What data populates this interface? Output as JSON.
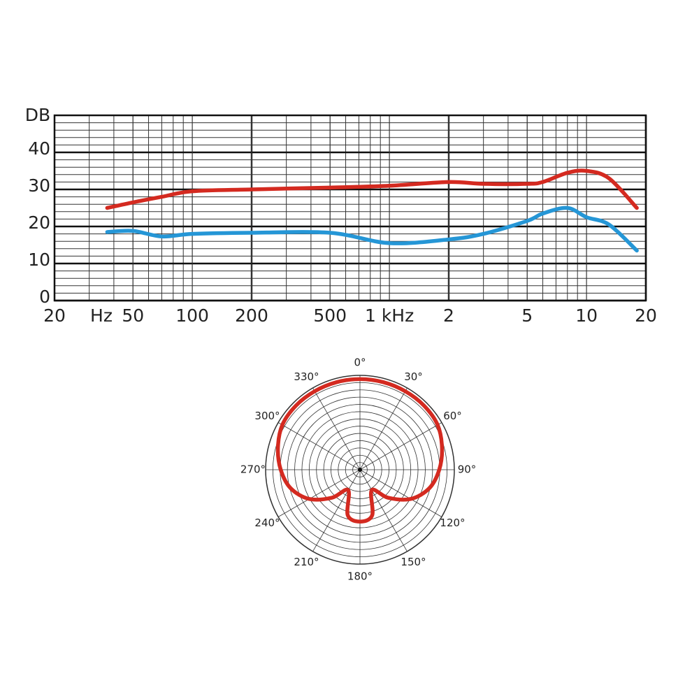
{
  "chart_data": [
    {
      "type": "line",
      "ylabel": "DB",
      "xlabel": "Hz",
      "xscale": "log",
      "grid": true,
      "xlim": [
        20,
        20000
      ],
      "ylim": [
        0,
        50
      ],
      "xticks": [
        20,
        50,
        100,
        200,
        500,
        {
          "value": 1000,
          "label": "1 kHz"
        },
        {
          "value": 2000,
          "label": "2"
        },
        {
          "value": 5000,
          "label": "5"
        },
        {
          "value": 10000,
          "label": "10"
        },
        {
          "value": 20000,
          "label": "20"
        }
      ],
      "yticks": [
        0,
        10,
        20,
        30,
        40
      ],
      "x": [
        37,
        50,
        70,
        100,
        200,
        500,
        1000,
        2000,
        3000,
        5000,
        6000,
        8000,
        10000,
        13000,
        18000
      ],
      "series": [
        {
          "color": "#d42a20",
          "values": [
            25,
            26.5,
            28,
            29.5,
            30,
            30.5,
            31,
            32,
            31.5,
            31.5,
            32,
            34.5,
            35,
            33,
            25
          ]
        },
        {
          "color": "#2596d6",
          "values": [
            18.5,
            18.8,
            17.3,
            18,
            18.3,
            18.3,
            15.5,
            16.5,
            18,
            21.5,
            23.5,
            25,
            22.5,
            20.5,
            13.5
          ]
        }
      ]
    },
    {
      "type": "polar",
      "rlim": [
        0,
        1
      ],
      "color": "#d42a20",
      "angle_labels": [
        "0°",
        "30°",
        "60°",
        "90°",
        "120°",
        "150°",
        "180°",
        "210°",
        "240°",
        "270°",
        "300°",
        "330°"
      ],
      "angle_ticks": [
        0,
        30,
        60,
        90,
        120,
        150,
        180,
        210,
        240,
        270,
        300,
        330
      ],
      "angles": [
        0,
        15,
        30,
        45,
        60,
        75,
        90,
        105,
        120,
        135,
        150,
        165,
        180,
        195,
        210,
        225,
        240,
        255,
        270,
        285,
        300,
        315,
        330,
        345
      ],
      "values": [
        0.96,
        0.96,
        0.96,
        0.96,
        0.95,
        0.9,
        0.84,
        0.76,
        0.62,
        0.42,
        0.25,
        0.5,
        0.55,
        0.5,
        0.25,
        0.42,
        0.62,
        0.76,
        0.84,
        0.9,
        0.95,
        0.96,
        0.96,
        0.96
      ]
    }
  ]
}
